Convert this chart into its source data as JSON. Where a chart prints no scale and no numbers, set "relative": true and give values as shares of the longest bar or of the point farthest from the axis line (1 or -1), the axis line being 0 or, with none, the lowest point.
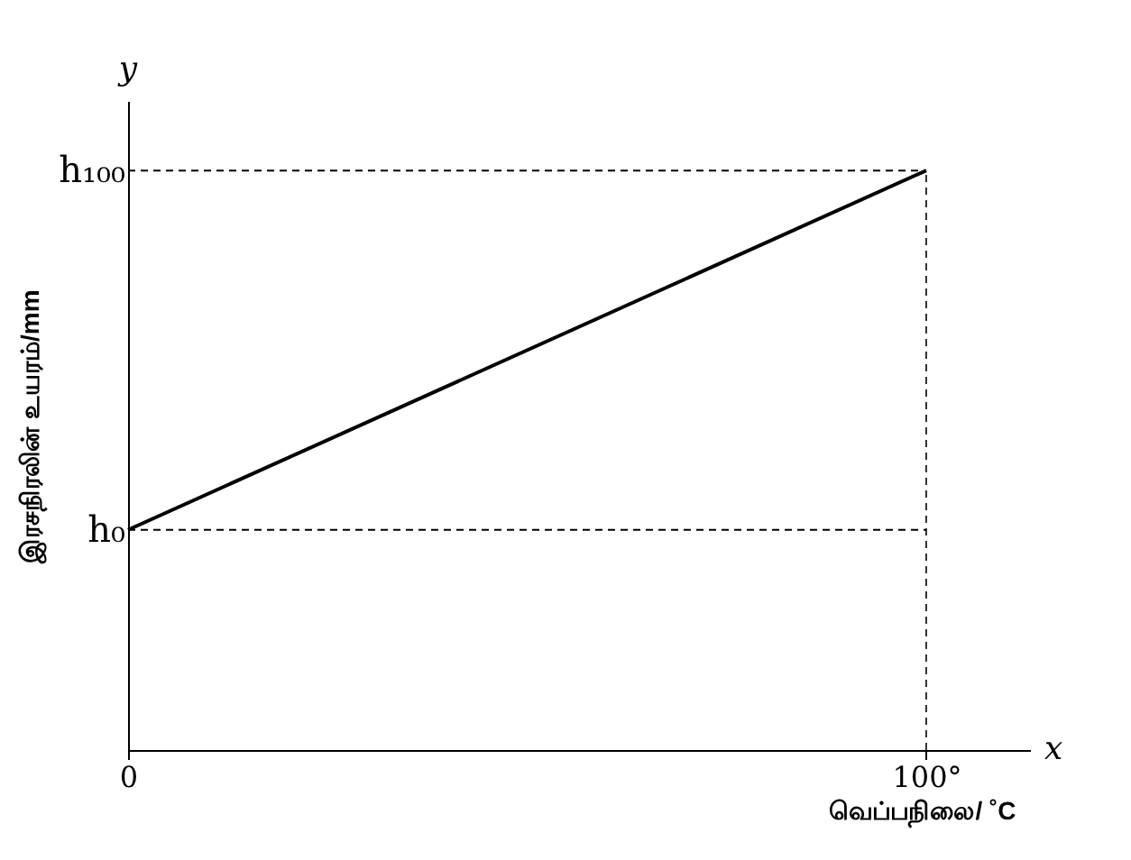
{
  "chart_data": {
    "type": "line",
    "relative": true,
    "xlabel": "வெப்பநிலை/ ˚C",
    "ylabel": "இரசநிரலின் உயரம்/mm",
    "x": [
      0,
      100
    ],
    "series": [
      {
        "color": "#000000",
        "values": [
          0.38,
          1
        ]
      }
    ],
    "xlim": [
      0,
      113
    ],
    "xticks": [
      0,
      {
        "value": 100,
        "label": "100°"
      }
    ],
    "ref_lines": [
      {
        "axis": "y",
        "value": 0.38,
        "label": "h₀",
        "line_style": "dashed"
      },
      {
        "axis": "y",
        "value": 1,
        "label": "h₁₀₀",
        "line_style": "dashed"
      },
      {
        "axis": "x",
        "value": 100,
        "line_style": "dashed"
      }
    ],
    "annotations": [
      "x",
      "y"
    ],
    "grid": false,
    "marker": "none",
    "line_style": "solid"
  }
}
